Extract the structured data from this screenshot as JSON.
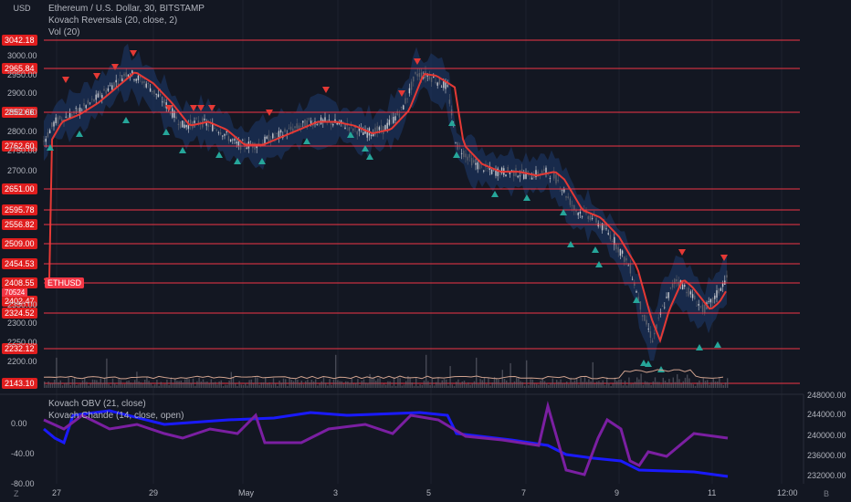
{
  "symbol": {
    "title": "Ethereum / U.S. Dollar, 30, BITSTAMP",
    "indicator1": "Kovach Reversals (20, close, 2)",
    "indicator2": "Vol (20)"
  },
  "lower_pane": {
    "indicator1": "Kovach OBV (21, close)",
    "indicator2": "Kovach Chande (14, close, open)"
  },
  "currency": "USD",
  "price_axis_ticks": [
    "3000.00",
    "2950.00",
    "2900.00",
    "2850.00",
    "2800.00",
    "2750.00",
    "2700.00",
    "2350.00",
    "2300.00",
    "2250.00",
    "2200.00"
  ],
  "level_badges": [
    "3042.18",
    "2965.84",
    "2852.66",
    "2762.60",
    "2651.00",
    "2595.78",
    "2556.82",
    "2509.00",
    "2454.53",
    "2408.55",
    "2402.47",
    "2324.52",
    "2232.12",
    "2143.10"
  ],
  "current_price": {
    "symbol": "ETHUSD",
    "volume_tag": "70524"
  },
  "lower_left_ticks": [
    "0.00",
    "-40.00",
    "-80.00"
  ],
  "lower_right_ticks": [
    "248000.00",
    "244000.00",
    "240000.00",
    "236000.00",
    "232000.00"
  ],
  "time_axis": [
    "27",
    "29",
    "May",
    "3",
    "5",
    "7",
    "9",
    "11",
    "12:00"
  ],
  "corner_buttons": {
    "left": "Z",
    "right": "B"
  },
  "colors": {
    "background": "#131722",
    "level_line": "#f23645",
    "badge": "#e01e1e",
    "band": "#1e3a6e",
    "ma": "#e53935",
    "obv": "#1a1aff",
    "chande": "#7b1fa2",
    "up_marker": "#26a69a",
    "down_marker": "#e53935"
  }
}
